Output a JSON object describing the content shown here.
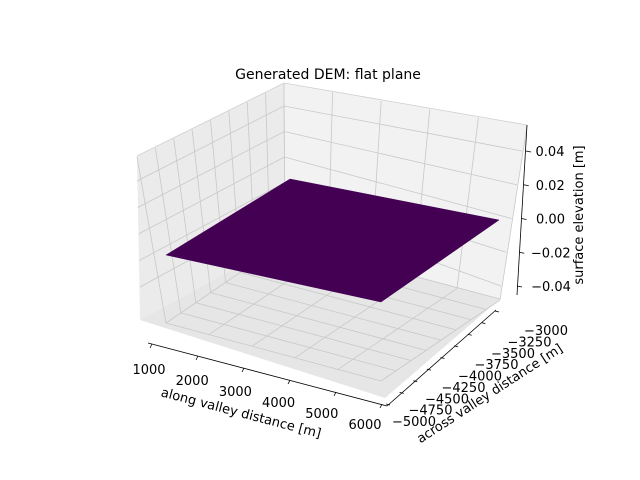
{
  "chart_data": {
    "type": "surface",
    "title": "Generated DEM: flat plane",
    "xlabel": "along valley distance [m]",
    "ylabel": "across valley distance [m]",
    "zlabel": "surface elevation [m]",
    "x_ticks": [
      "1000",
      "2000",
      "3000",
      "4000",
      "5000",
      "6000"
    ],
    "y_ticks": [
      "−5000",
      "−4750",
      "−4500",
      "−4250",
      "−4000",
      "−3750",
      "−3500",
      "−3250",
      "−3000"
    ],
    "z_ticks": [
      "−0.04",
      "−0.02",
      "0.00",
      "0.02",
      "0.04"
    ],
    "surface": {
      "x_range": [
        1000,
        6000
      ],
      "y_range": [
        -5000,
        -3000
      ],
      "elevation": 0,
      "color": "#440154"
    },
    "grid": true
  }
}
